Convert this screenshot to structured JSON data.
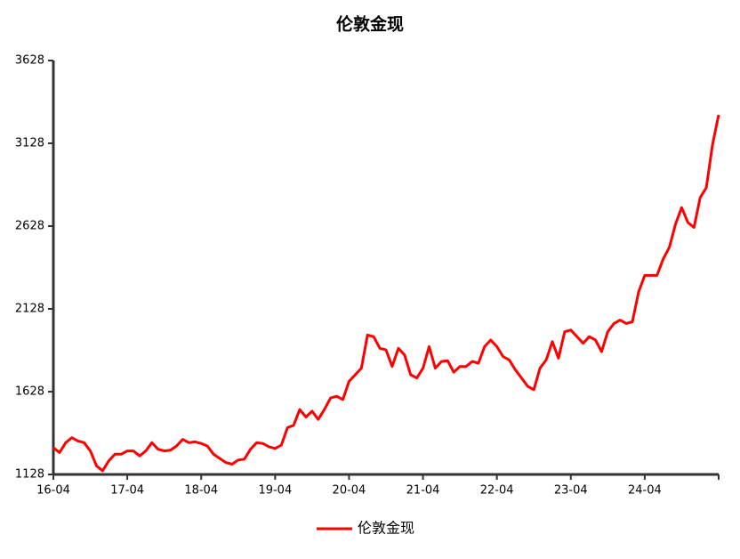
{
  "chart_data": {
    "type": "line",
    "title": "伦敦金现",
    "categories": [
      "16-04",
      null,
      null,
      null,
      null,
      null,
      null,
      null,
      null,
      null,
      null,
      null,
      "17-04",
      null,
      null,
      null,
      null,
      null,
      null,
      null,
      null,
      null,
      null,
      null,
      "18-04",
      null,
      null,
      null,
      null,
      null,
      null,
      null,
      null,
      null,
      null,
      null,
      "19-04",
      null,
      null,
      null,
      null,
      null,
      null,
      null,
      null,
      null,
      null,
      null,
      "20-04",
      null,
      null,
      null,
      null,
      null,
      null,
      null,
      null,
      null,
      null,
      null,
      "21-04",
      null,
      null,
      null,
      null,
      null,
      null,
      null,
      null,
      null,
      null,
      null,
      "22-04",
      null,
      null,
      null,
      null,
      null,
      null,
      null,
      null,
      null,
      null,
      null,
      "23-04",
      null,
      null,
      null,
      null,
      null,
      null,
      null,
      null,
      null,
      null,
      null,
      "24-04",
      null,
      null,
      null,
      null,
      null,
      null,
      null,
      null,
      null,
      null,
      null,
      null
    ],
    "series": [
      {
        "name": "伦敦金现",
        "color": "#ff0000",
        "values": [
          1290,
          1260,
          1320,
          1350,
          1330,
          1320,
          1270,
          1180,
          1150,
          1210,
          1250,
          1250,
          1270,
          1270,
          1240,
          1270,
          1320,
          1280,
          1270,
          1275,
          1300,
          1340,
          1320,
          1325,
          1315,
          1300,
          1250,
          1225,
          1200,
          1190,
          1215,
          1220,
          1280,
          1320,
          1315,
          1295,
          1285,
          1305,
          1410,
          1425,
          1520,
          1475,
          1510,
          1460,
          1520,
          1590,
          1600,
          1580,
          1690,
          1730,
          1770,
          1970,
          1960,
          1890,
          1880,
          1780,
          1890,
          1850,
          1730,
          1710,
          1770,
          1900,
          1770,
          1810,
          1815,
          1745,
          1780,
          1780,
          1810,
          1800,
          1900,
          1940,
          1900,
          1840,
          1820,
          1760,
          1710,
          1660,
          1640,
          1770,
          1820,
          1930,
          1830,
          1990,
          2000,
          1960,
          1920,
          1960,
          1940,
          1870,
          1990,
          2040,
          2060,
          2040,
          2050,
          2230,
          2330,
          2330,
          2330,
          2430,
          2500,
          2640,
          2740,
          2650,
          2620,
          2800,
          2860,
          3120,
          3300
        ]
      }
    ],
    "ylim": [
      1128,
      3628
    ],
    "yticks": [
      1128,
      1628,
      2128,
      2628,
      3128,
      3628
    ],
    "legend": "bottom"
  }
}
